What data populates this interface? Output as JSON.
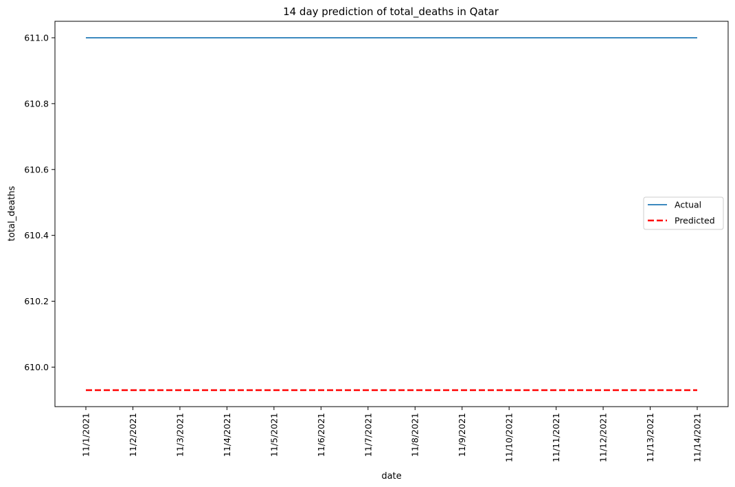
{
  "chart_data": {
    "type": "line",
    "title": "14 day prediction of total_deaths in Qatar",
    "xlabel": "date",
    "ylabel": "total_deaths",
    "x": [
      "11/1/2021",
      "11/2/2021",
      "11/3/2021",
      "11/4/2021",
      "11/5/2021",
      "11/6/2021",
      "11/7/2021",
      "11/8/2021",
      "11/9/2021",
      "11/10/2021",
      "11/11/2021",
      "11/12/2021",
      "11/13/2021",
      "11/14/2021"
    ],
    "series": [
      {
        "name": "Actual",
        "color": "#1f77b4",
        "style": "solid",
        "values": [
          611.0,
          611.0,
          611.0,
          611.0,
          611.0,
          611.0,
          611.0,
          611.0,
          611.0,
          611.0,
          611.0,
          611.0,
          611.0,
          611.0
        ]
      },
      {
        "name": "Predicted",
        "color": "#ff0000",
        "style": "dashed",
        "values": [
          609.93,
          609.93,
          609.93,
          609.93,
          609.93,
          609.93,
          609.93,
          609.93,
          609.93,
          609.93,
          609.93,
          609.93,
          609.93,
          609.93
        ]
      }
    ],
    "ylim": [
      609.88,
      611.05
    ],
    "yticks": [
      "610.0",
      "610.2",
      "610.4",
      "610.6",
      "610.8",
      "611.0"
    ],
    "ytick_values": [
      610.0,
      610.2,
      610.4,
      610.6,
      610.8,
      611.0
    ],
    "legend_position": "center-right",
    "grid": false
  }
}
